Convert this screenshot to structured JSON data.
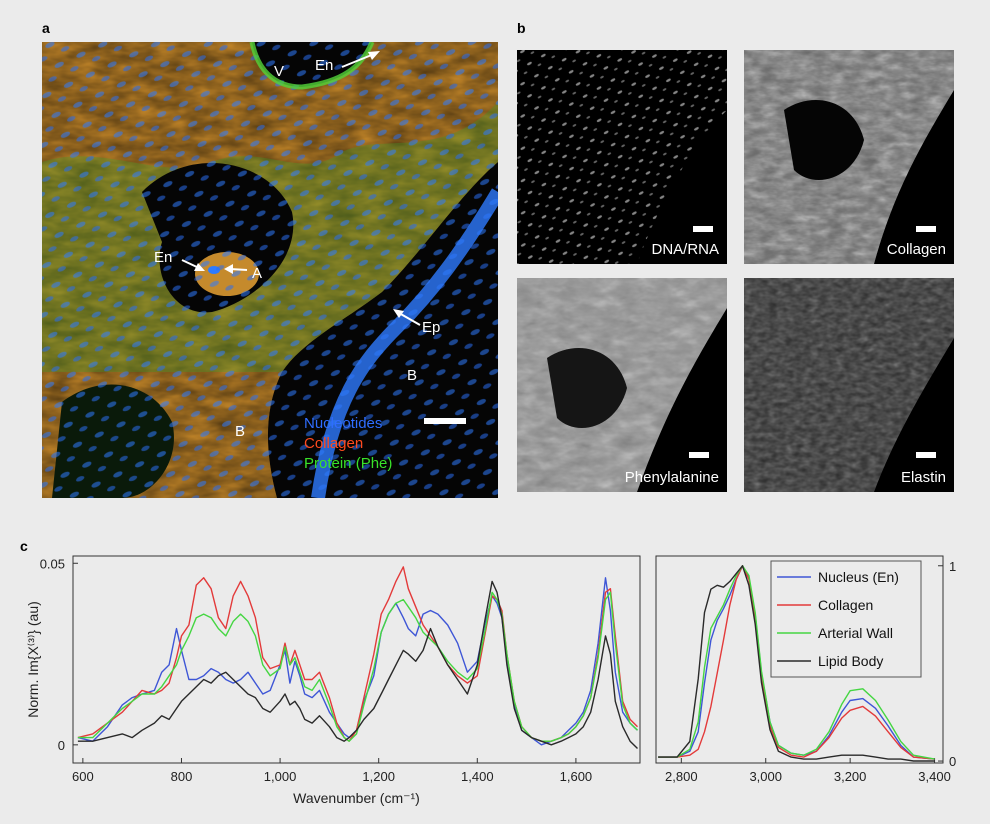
{
  "panels": {
    "a": "a",
    "b": "b",
    "c": "c"
  },
  "panel_a": {
    "annotations": {
      "v": "V",
      "en_top": "En",
      "en_mid": "En",
      "a": "A",
      "ep": "Ep",
      "b_right": "B",
      "b_bottom": "B"
    },
    "legend": [
      {
        "label": "Nucleotides",
        "color": "#2f6dff"
      },
      {
        "label": "Collagen",
        "color": "#ff4a1e"
      },
      {
        "label": "Protein (Phe)",
        "color": "#39e22a"
      }
    ]
  },
  "panel_b": {
    "tiles": [
      {
        "label": "DNA/RNA"
      },
      {
        "label": "Collagen"
      },
      {
        "label": "Phenylalanine"
      },
      {
        "label": "Elastin"
      }
    ]
  },
  "chart_data": [
    {
      "type": "line",
      "xlabel": "Wavenumber (cm⁻¹)",
      "ylabel": "Norm. Im{X⁽³⁾} (au)",
      "xlim": [
        580,
        1730
      ],
      "ylim": [
        -0.005,
        0.052
      ],
      "xticks": [
        600,
        800,
        1000,
        1200,
        1400,
        1600
      ],
      "xtick_labels": [
        "600",
        "800",
        "1,000",
        "1,200",
        "1,400",
        "1,600"
      ],
      "yticks": [
        0,
        0.05
      ],
      "ytick_labels": [
        "0",
        "0.05"
      ],
      "x": [
        590,
        620,
        650,
        680,
        700,
        720,
        745,
        760,
        775,
        790,
        800,
        815,
        830,
        845,
        860,
        875,
        890,
        905,
        920,
        935,
        950,
        965,
        980,
        1000,
        1010,
        1020,
        1030,
        1040,
        1050,
        1065,
        1080,
        1100,
        1115,
        1130,
        1140,
        1155,
        1170,
        1190,
        1205,
        1220,
        1235,
        1250,
        1260,
        1275,
        1290,
        1305,
        1320,
        1340,
        1360,
        1380,
        1400,
        1415,
        1430,
        1440,
        1450,
        1460,
        1475,
        1490,
        1510,
        1530,
        1550,
        1570,
        1585,
        1600,
        1615,
        1630,
        1645,
        1660,
        1670,
        1680,
        1695,
        1710,
        1725
      ],
      "series": [
        {
          "name": "Nucleus (En)",
          "color": "#3e56d6",
          "values": [
            0.002,
            0.001,
            0.005,
            0.011,
            0.013,
            0.014,
            0.015,
            0.02,
            0.022,
            0.032,
            0.026,
            0.018,
            0.018,
            0.019,
            0.021,
            0.02,
            0.018,
            0.017,
            0.018,
            0.02,
            0.017,
            0.014,
            0.015,
            0.022,
            0.026,
            0.017,
            0.023,
            0.019,
            0.014,
            0.013,
            0.015,
            0.009,
            0.006,
            0.003,
            0.002,
            0.004,
            0.012,
            0.019,
            0.031,
            0.036,
            0.039,
            0.035,
            0.032,
            0.03,
            0.036,
            0.037,
            0.036,
            0.033,
            0.028,
            0.02,
            0.023,
            0.033,
            0.041,
            0.039,
            0.035,
            0.024,
            0.011,
            0.004,
            0.002,
            0.0,
            0.001,
            0.002,
            0.004,
            0.006,
            0.009,
            0.015,
            0.028,
            0.046,
            0.037,
            0.02,
            0.009,
            0.006,
            0.004
          ]
        },
        {
          "name": "Collagen",
          "color": "#e33a3a",
          "values": [
            0.002,
            0.003,
            0.006,
            0.009,
            0.012,
            0.015,
            0.014,
            0.015,
            0.017,
            0.024,
            0.03,
            0.033,
            0.044,
            0.046,
            0.043,
            0.035,
            0.032,
            0.041,
            0.045,
            0.041,
            0.035,
            0.024,
            0.021,
            0.022,
            0.028,
            0.022,
            0.026,
            0.022,
            0.018,
            0.018,
            0.02,
            0.013,
            0.006,
            0.002,
            0.001,
            0.004,
            0.013,
            0.025,
            0.036,
            0.04,
            0.045,
            0.049,
            0.043,
            0.038,
            0.033,
            0.03,
            0.027,
            0.022,
            0.019,
            0.017,
            0.019,
            0.03,
            0.041,
            0.04,
            0.037,
            0.025,
            0.012,
            0.005,
            0.002,
            0.001,
            0.001,
            0.002,
            0.003,
            0.005,
            0.008,
            0.013,
            0.025,
            0.042,
            0.043,
            0.03,
            0.012,
            0.007,
            0.005
          ]
        },
        {
          "name": "Arterial Wall",
          "color": "#45d642",
          "values": [
            0.002,
            0.002,
            0.006,
            0.01,
            0.012,
            0.014,
            0.014,
            0.016,
            0.019,
            0.022,
            0.026,
            0.03,
            0.035,
            0.036,
            0.035,
            0.032,
            0.03,
            0.034,
            0.036,
            0.034,
            0.03,
            0.022,
            0.019,
            0.021,
            0.027,
            0.022,
            0.024,
            0.02,
            0.016,
            0.015,
            0.018,
            0.011,
            0.005,
            0.002,
            0.001,
            0.003,
            0.011,
            0.021,
            0.031,
            0.036,
            0.039,
            0.04,
            0.038,
            0.035,
            0.031,
            0.029,
            0.027,
            0.023,
            0.02,
            0.018,
            0.021,
            0.031,
            0.042,
            0.04,
            0.036,
            0.025,
            0.012,
            0.005,
            0.002,
            0.001,
            0.001,
            0.002,
            0.003,
            0.005,
            0.008,
            0.013,
            0.024,
            0.04,
            0.042,
            0.028,
            0.011,
            0.006,
            0.004
          ]
        },
        {
          "name": "Lipid Body",
          "color": "#2a2a2a",
          "values": [
            0.001,
            0.001,
            0.002,
            0.003,
            0.002,
            0.004,
            0.006,
            0.008,
            0.007,
            0.01,
            0.012,
            0.014,
            0.016,
            0.018,
            0.017,
            0.019,
            0.02,
            0.018,
            0.016,
            0.014,
            0.013,
            0.01,
            0.009,
            0.012,
            0.014,
            0.011,
            0.012,
            0.01,
            0.007,
            0.006,
            0.008,
            0.005,
            0.002,
            0.001,
            0.002,
            0.004,
            0.007,
            0.01,
            0.014,
            0.018,
            0.022,
            0.026,
            0.025,
            0.023,
            0.026,
            0.032,
            0.027,
            0.022,
            0.018,
            0.014,
            0.022,
            0.034,
            0.045,
            0.042,
            0.035,
            0.022,
            0.01,
            0.004,
            0.002,
            0.001,
            0.0,
            0.001,
            0.002,
            0.003,
            0.005,
            0.009,
            0.018,
            0.03,
            0.025,
            0.012,
            0.005,
            0.001,
            -0.001
          ]
        }
      ]
    },
    {
      "type": "line",
      "xlim": [
        2740,
        3420
      ],
      "ylim": [
        -0.01,
        1.05
      ],
      "xticks": [
        2800,
        3000,
        3200,
        3400
      ],
      "xtick_labels": [
        "2,800",
        "3,000",
        "3,200",
        "3,400"
      ],
      "yticks": [
        0,
        1
      ],
      "ytick_labels": [
        "0",
        "1"
      ],
      "legend_position": "top-right",
      "x": [
        2745,
        2790,
        2820,
        2840,
        2855,
        2870,
        2885,
        2900,
        2915,
        2930,
        2945,
        2960,
        2975,
        2990,
        3010,
        3030,
        3060,
        3090,
        3120,
        3150,
        3180,
        3200,
        3230,
        3260,
        3290,
        3320,
        3350,
        3400
      ],
      "series": [
        {
          "name": "Nucleus (En)",
          "color": "#3e56d6",
          "values": [
            0.02,
            0.02,
            0.05,
            0.15,
            0.4,
            0.62,
            0.72,
            0.78,
            0.85,
            0.93,
            1.0,
            0.94,
            0.75,
            0.45,
            0.2,
            0.08,
            0.04,
            0.03,
            0.05,
            0.13,
            0.25,
            0.31,
            0.32,
            0.27,
            0.18,
            0.08,
            0.02,
            0.01
          ]
        },
        {
          "name": "Collagen",
          "color": "#e33a3a",
          "values": [
            0.02,
            0.02,
            0.03,
            0.06,
            0.15,
            0.28,
            0.45,
            0.62,
            0.8,
            0.93,
            1.0,
            0.93,
            0.72,
            0.42,
            0.18,
            0.07,
            0.03,
            0.02,
            0.05,
            0.12,
            0.22,
            0.26,
            0.28,
            0.23,
            0.15,
            0.07,
            0.02,
            0.01
          ]
        },
        {
          "name": "Arterial Wall",
          "color": "#45d642",
          "values": [
            0.02,
            0.02,
            0.06,
            0.2,
            0.48,
            0.68,
            0.74,
            0.8,
            0.88,
            0.95,
            1.0,
            0.95,
            0.76,
            0.46,
            0.2,
            0.08,
            0.04,
            0.03,
            0.06,
            0.15,
            0.29,
            0.36,
            0.37,
            0.31,
            0.21,
            0.1,
            0.03,
            0.01
          ]
        },
        {
          "name": "Lipid Body",
          "color": "#2a2a2a",
          "values": [
            0.02,
            0.02,
            0.1,
            0.42,
            0.76,
            0.88,
            0.9,
            0.89,
            0.92,
            0.96,
            1.0,
            0.9,
            0.7,
            0.4,
            0.16,
            0.05,
            0.02,
            0.01,
            0.01,
            0.02,
            0.03,
            0.03,
            0.03,
            0.02,
            0.01,
            0.01,
            0.0,
            0.0
          ]
        }
      ]
    }
  ]
}
